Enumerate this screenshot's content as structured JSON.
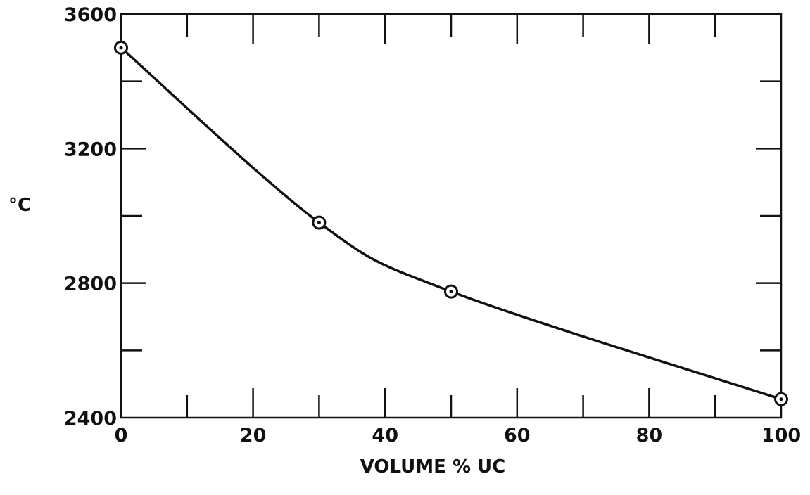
{
  "chart_data": {
    "type": "line",
    "title": "",
    "xlabel": "VOLUME % UC",
    "ylabel": "°C",
    "xlim": [
      0,
      100
    ],
    "ylim": [
      2400,
      3600
    ],
    "x_ticks": [
      0,
      20,
      40,
      60,
      80,
      100
    ],
    "x_minor_ticks": [
      10,
      30,
      50,
      70,
      90
    ],
    "y_ticks": [
      2400,
      2800,
      3200,
      3600
    ],
    "y_minor_ticks": [
      2600,
      3000,
      3400
    ],
    "grid": false,
    "legend": "none",
    "series": [
      {
        "x": [
          0,
          30,
          50,
          100
        ],
        "y": [
          3500,
          2980,
          2775,
          2455
        ],
        "marker": "circle-dot",
        "smooth": true
      }
    ]
  }
}
